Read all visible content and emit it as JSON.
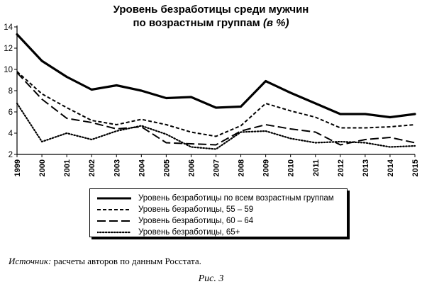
{
  "title": {
    "line1": "Уровень безработицы среди мужчин",
    "line2_main": "по возрастным группам",
    "line2_unit": "(в %)"
  },
  "chart_data": {
    "type": "line",
    "x": [
      1999,
      2000,
      2001,
      2002,
      2003,
      2004,
      2005,
      2006,
      2007,
      2008,
      2009,
      2010,
      2011,
      2012,
      2013,
      2014,
      2015
    ],
    "ylim": [
      2,
      14
    ],
    "yticks": [
      2,
      4,
      6,
      8,
      10,
      12,
      14
    ],
    "grid": false,
    "legend_position": "bottom",
    "series": [
      {
        "name": "Уровень безработицы по всем возрастным группам",
        "style": "solid-bold",
        "values": [
          13.3,
          10.8,
          9.3,
          8.1,
          8.5,
          8.0,
          7.3,
          7.4,
          6.4,
          6.5,
          8.9,
          7.8,
          6.8,
          5.8,
          5.8,
          5.5,
          5.8
        ]
      },
      {
        "name": "Уровень безработицы, 55 – 59",
        "style": "dashed",
        "values": [
          9.8,
          7.7,
          6.4,
          5.2,
          4.8,
          5.3,
          4.8,
          4.1,
          3.7,
          4.7,
          6.8,
          6.1,
          5.5,
          4.5,
          4.5,
          4.6,
          4.8
        ]
      },
      {
        "name": "Уровень безработицы, 60 – 64",
        "style": "long-dash",
        "values": [
          9.7,
          7.2,
          5.4,
          5.0,
          4.4,
          4.6,
          3.1,
          3.0,
          2.9,
          4.2,
          4.8,
          4.4,
          4.1,
          2.9,
          3.4,
          3.6,
          3.1
        ]
      },
      {
        "name": "Уровень безработицы, 65+",
        "style": "dotted",
        "values": [
          6.8,
          3.2,
          4.0,
          3.4,
          4.2,
          4.7,
          3.9,
          2.7,
          2.5,
          4.1,
          4.2,
          3.5,
          3.1,
          3.2,
          3.1,
          2.7,
          2.8
        ]
      }
    ]
  },
  "legend": {
    "items": [
      "Уровень безработицы по всем возрастным группам",
      "Уровень безработицы, 55 – 59",
      "Уровень безработицы, 60 – 64",
      "Уровень безработицы, 65+"
    ]
  },
  "source": {
    "label": "Источник:",
    "text": "расчеты авторов по данным Росстата."
  },
  "figure_caption": "Рис. 3"
}
